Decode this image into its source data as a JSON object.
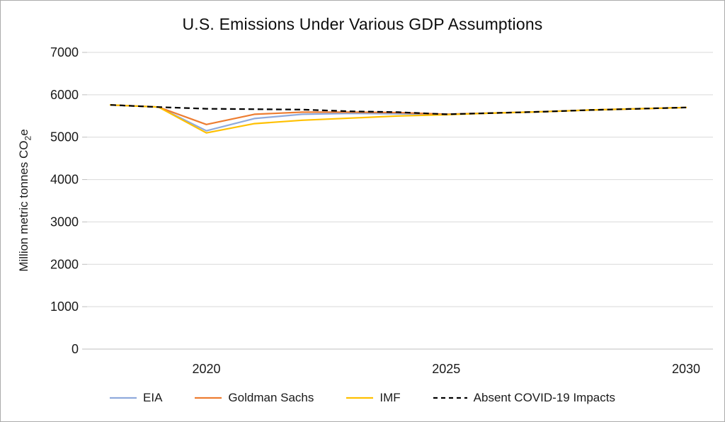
{
  "title": "U.S. Emissions Under Various GDP Assumptions",
  "y_axis": {
    "label_pre": "Million metric tonnes CO",
    "label_sub": "2",
    "label_post": "e"
  },
  "colors": {
    "grid": "#d9d9d9",
    "axis": "#bfbfbf",
    "text": "#1a1a1a",
    "background": "#ffffff",
    "border": "#ababab",
    "eia": "#8faadc",
    "goldman_sachs": "#ed7d31",
    "imf": "#ffc000",
    "absent_covid": "#000000"
  },
  "chart_data": {
    "type": "line",
    "title": "U.S. Emissions Under Various GDP Assumptions",
    "xlabel": "",
    "ylabel": "Million metric tonnes CO2e",
    "ylim": [
      0,
      7000
    ],
    "yticks": [
      0,
      1000,
      2000,
      3000,
      4000,
      5000,
      6000,
      7000
    ],
    "xticks": [
      2020,
      2025,
      2030
    ],
    "grid": "horizontal",
    "legend_position": "bottom",
    "x": [
      2018,
      2019,
      2020,
      2021,
      2022,
      2023,
      2024,
      2025,
      2026,
      2027,
      2028,
      2029,
      2030
    ],
    "series": [
      {
        "name": "EIA",
        "color": "#8faadc",
        "dash": null,
        "values": [
          5760,
          5710,
          5150,
          5440,
          5540,
          5560,
          5550,
          5540,
          5570,
          5600,
          5640,
          5670,
          5700
        ]
      },
      {
        "name": "Goldman Sachs",
        "color": "#ed7d31",
        "dash": null,
        "values": [
          5760,
          5710,
          5300,
          5540,
          5590,
          5590,
          5580,
          5540,
          5570,
          5600,
          5640,
          5670,
          5700
        ]
      },
      {
        "name": "IMF",
        "color": "#ffc000",
        "dash": null,
        "values": [
          5760,
          5710,
          5100,
          5320,
          5400,
          5450,
          5500,
          5530,
          5570,
          5600,
          5640,
          5670,
          5700
        ]
      },
      {
        "name": "Absent COVID-19 Impacts",
        "color": "#000000",
        "dash": "8 5",
        "values": [
          5760,
          5710,
          5670,
          5660,
          5650,
          5610,
          5590,
          5540,
          5570,
          5600,
          5640,
          5670,
          5700
        ]
      }
    ]
  }
}
